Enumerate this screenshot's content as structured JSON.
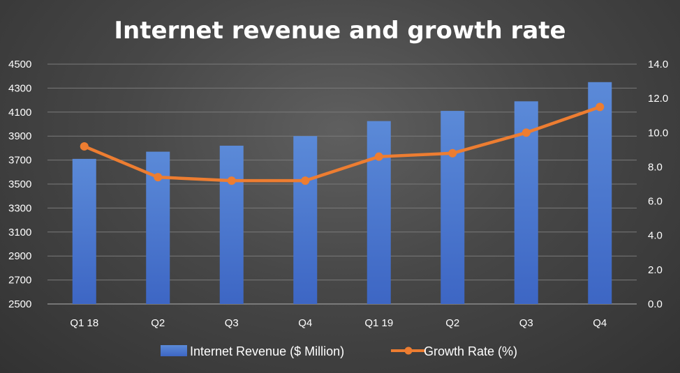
{
  "chart_data": {
    "type": "bar",
    "title": "Internet revenue and growth rate",
    "categories": [
      "Q1 18",
      "Q2",
      "Q3",
      "Q4",
      "Q1 19",
      "Q2",
      "Q3",
      "Q4"
    ],
    "series": [
      {
        "name": "Internet Revenue ($ Million)",
        "type": "bar",
        "axis": "left",
        "values": [
          3710,
          3770,
          3820,
          3900,
          4025,
          4110,
          4190,
          4350
        ]
      },
      {
        "name": "Growth Rate (%)",
        "type": "line",
        "axis": "right",
        "values": [
          9.2,
          7.4,
          7.2,
          7.2,
          8.6,
          8.8,
          10.0,
          11.5
        ]
      }
    ],
    "y_left": {
      "ylim": [
        2500,
        4500
      ],
      "ticks": [
        "2500",
        "2700",
        "2900",
        "3100",
        "3300",
        "3500",
        "3700",
        "3900",
        "4100",
        "4300",
        "4500"
      ]
    },
    "y_right": {
      "ylim": [
        0,
        14
      ],
      "ticks": [
        "0.0",
        "2.0",
        "4.0",
        "6.0",
        "8.0",
        "10.0",
        "12.0",
        "14.0"
      ]
    },
    "grid": true,
    "legend_position": "bottom",
    "colors": {
      "bar_top": "#5b8ad8",
      "bar_bottom": "#3d66c4",
      "line": "#ed7d31",
      "grid": "#7a7a7a",
      "text": "#ffffff"
    }
  }
}
